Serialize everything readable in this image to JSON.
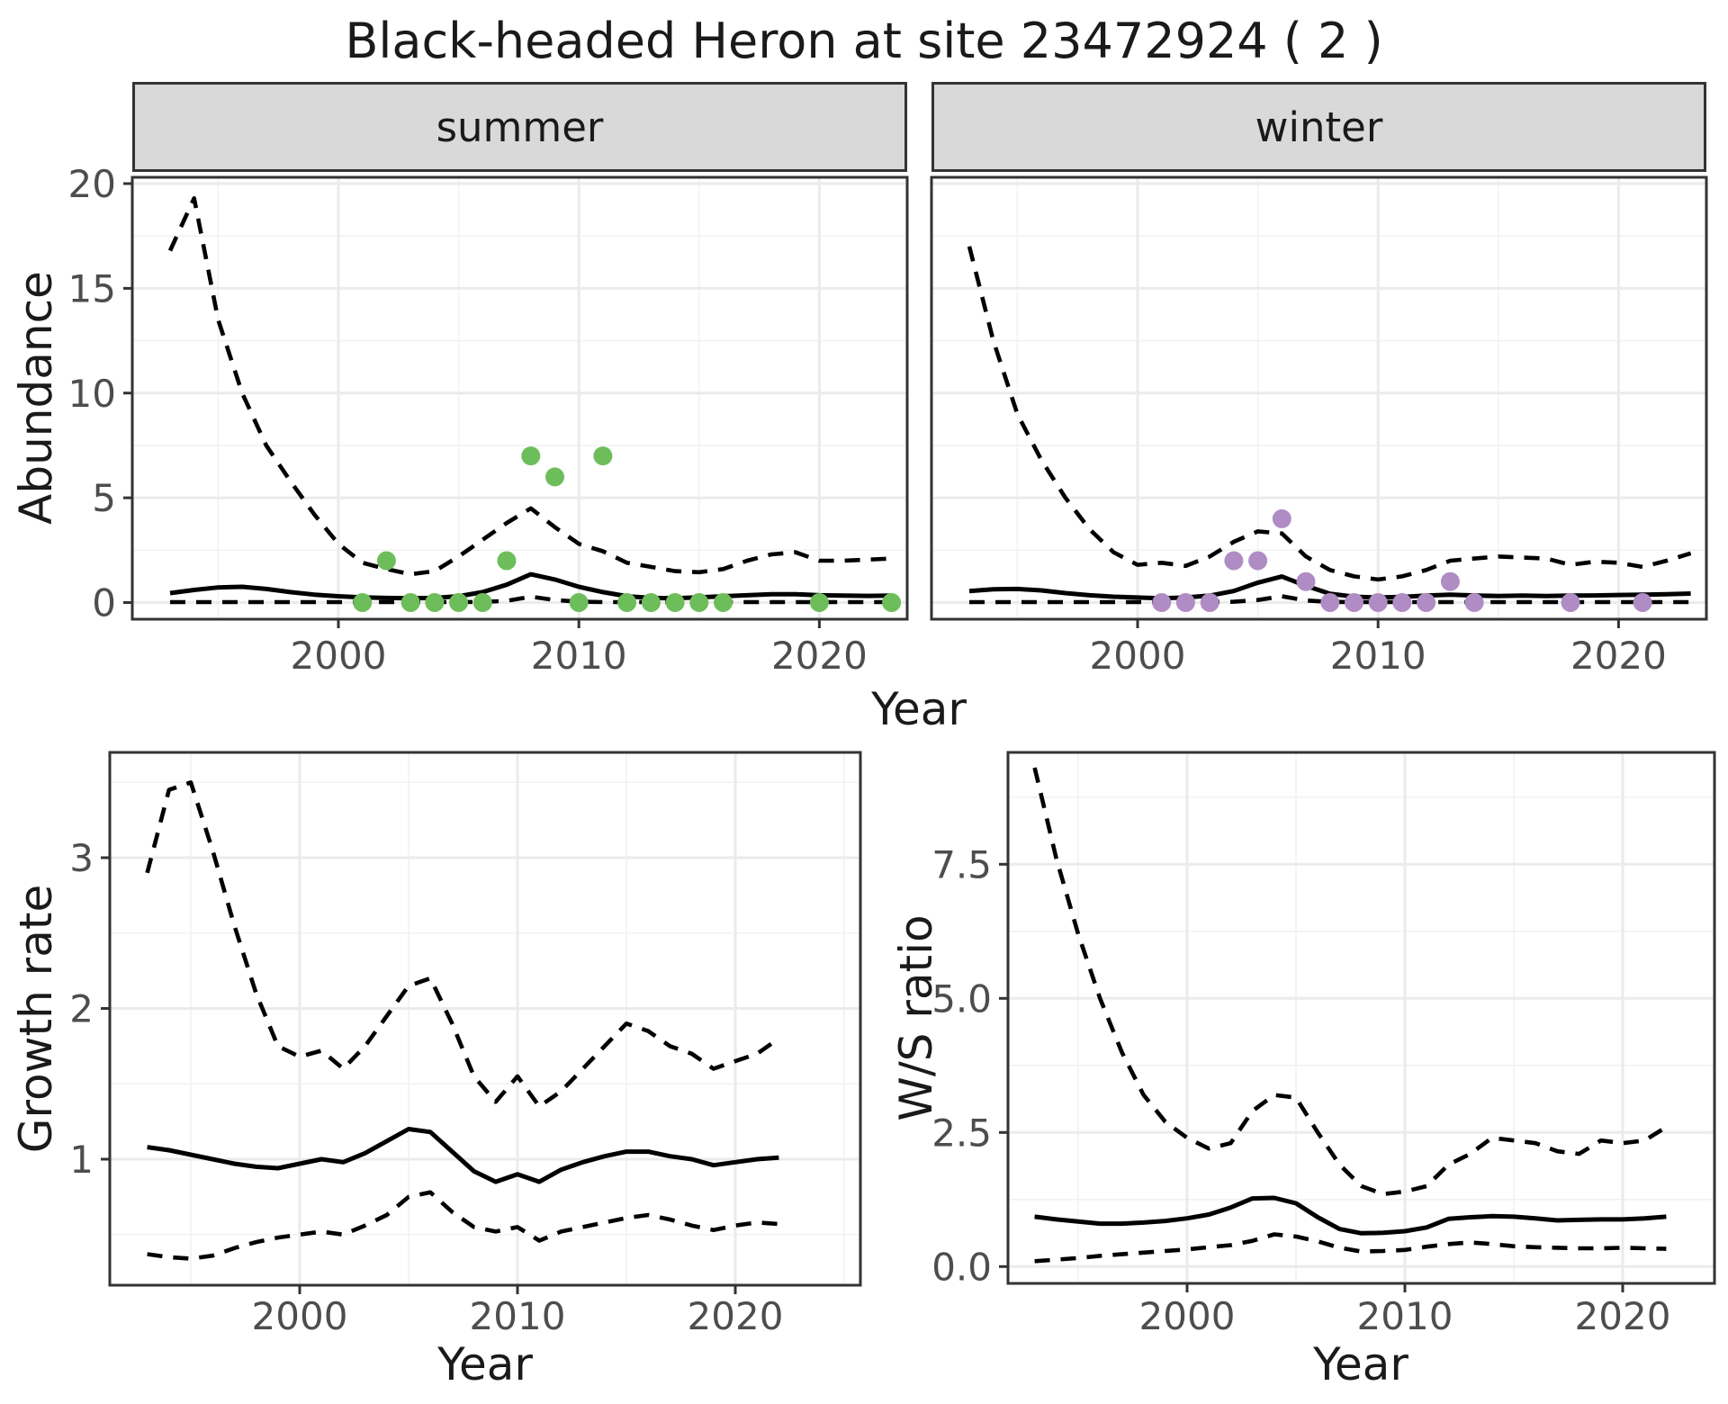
{
  "title": "Black-headed Heron at site 23472924 ( 2 )",
  "colors": {
    "summer_point": "#6dbe5b",
    "winter_point": "#b08cc5",
    "line": "#000000",
    "grid_major": "#ebebeb",
    "grid_minor": "#f2f2f2",
    "panel_border": "#333333",
    "strip_fill": "#d9d9d9",
    "tick_text": "#4d4d4d",
    "text": "#1a1a1a"
  },
  "chart_data": [
    {
      "type": "line",
      "title": "Abundance by year, faceted by season",
      "xlabel": "Year",
      "ylabel": "Abundance",
      "x_tick_labels": [
        "2000",
        "2010",
        "2020"
      ],
      "x_tick_values": [
        2000,
        2010,
        2020
      ],
      "y_tick_labels": [
        "0",
        "5",
        "10",
        "15",
        "20"
      ],
      "y_tick_values": [
        0,
        5,
        10,
        15,
        20
      ],
      "xlim": [
        1991.4,
        2023.6
      ],
      "ylim": [
        -0.8,
        20.3
      ],
      "grid": true,
      "legend": "none",
      "line_styles": {
        "median": "solid",
        "upper": "dashed",
        "lower": "dashed"
      },
      "facets": [
        {
          "name": "summer",
          "points": [
            [
              2001,
              0
            ],
            [
              2002,
              2
            ],
            [
              2003,
              0
            ],
            [
              2004,
              0
            ],
            [
              2005,
              0
            ],
            [
              2006,
              0
            ],
            [
              2007,
              2
            ],
            [
              2008,
              7
            ],
            [
              2009,
              6
            ],
            [
              2010,
              0
            ],
            [
              2011,
              7
            ],
            [
              2012,
              0
            ],
            [
              2013,
              0
            ],
            [
              2014,
              0
            ],
            [
              2015,
              0
            ],
            [
              2016,
              0
            ],
            [
              2020,
              0
            ],
            [
              2023,
              0
            ]
          ],
          "years": [
            1993,
            1994,
            1995,
            1996,
            1997,
            1998,
            1999,
            2000,
            2001,
            2002,
            2003,
            2004,
            2005,
            2006,
            2007,
            2008,
            2009,
            2010,
            2011,
            2012,
            2013,
            2014,
            2015,
            2016,
            2017,
            2018,
            2019,
            2020,
            2021,
            2022,
            2023
          ],
          "median": [
            0.45,
            0.6,
            0.72,
            0.75,
            0.65,
            0.5,
            0.38,
            0.3,
            0.25,
            0.22,
            0.2,
            0.22,
            0.3,
            0.5,
            0.85,
            1.35,
            1.1,
            0.75,
            0.5,
            0.3,
            0.22,
            0.2,
            0.25,
            0.3,
            0.35,
            0.4,
            0.4,
            0.35,
            0.33,
            0.32,
            0.33
          ],
          "upper": [
            16.8,
            19.3,
            13.5,
            10.0,
            7.5,
            5.8,
            4.2,
            2.8,
            1.9,
            1.6,
            1.35,
            1.5,
            2.2,
            3.0,
            3.8,
            4.5,
            3.6,
            2.8,
            2.45,
            1.9,
            1.7,
            1.5,
            1.45,
            1.6,
            2.0,
            2.3,
            2.4,
            2.0,
            2.0,
            2.05,
            2.1
          ],
          "lower": [
            0.02,
            0.02,
            0.02,
            0.02,
            0.02,
            0.02,
            0.02,
            0.02,
            0.02,
            0.02,
            0.02,
            0.02,
            0.02,
            0.03,
            0.08,
            0.28,
            0.12,
            0.04,
            0.02,
            0.02,
            0.02,
            0.02,
            0.02,
            0.02,
            0.02,
            0.02,
            0.02,
            0.02,
            0.02,
            0.02,
            0.02
          ]
        },
        {
          "name": "winter",
          "points": [
            [
              2001,
              0
            ],
            [
              2002,
              0
            ],
            [
              2003,
              0
            ],
            [
              2004,
              2
            ],
            [
              2005,
              2
            ],
            [
              2006,
              4
            ],
            [
              2007,
              1
            ],
            [
              2008,
              0
            ],
            [
              2009,
              0
            ],
            [
              2010,
              0
            ],
            [
              2011,
              0
            ],
            [
              2012,
              0
            ],
            [
              2013,
              1
            ],
            [
              2014,
              0
            ],
            [
              2018,
              0
            ],
            [
              2021,
              0
            ]
          ],
          "years": [
            1993,
            1994,
            1995,
            1996,
            1997,
            1998,
            1999,
            2000,
            2001,
            2002,
            2003,
            2004,
            2005,
            2006,
            2007,
            2008,
            2009,
            2010,
            2011,
            2012,
            2013,
            2014,
            2015,
            2016,
            2017,
            2018,
            2019,
            2020,
            2021,
            2022,
            2023
          ],
          "median": [
            0.55,
            0.63,
            0.65,
            0.58,
            0.45,
            0.35,
            0.28,
            0.24,
            0.2,
            0.24,
            0.33,
            0.55,
            0.95,
            1.24,
            0.8,
            0.42,
            0.28,
            0.24,
            0.27,
            0.33,
            0.38,
            0.34,
            0.31,
            0.33,
            0.31,
            0.33,
            0.34,
            0.36,
            0.38,
            0.4,
            0.43
          ],
          "upper": [
            17.0,
            12.5,
            9.0,
            6.8,
            5.0,
            3.5,
            2.4,
            1.8,
            1.9,
            1.75,
            2.2,
            2.9,
            3.4,
            3.3,
            2.2,
            1.55,
            1.25,
            1.1,
            1.25,
            1.55,
            2.0,
            2.1,
            2.2,
            2.15,
            2.1,
            1.8,
            1.95,
            1.9,
            1.7,
            2.0,
            2.35
          ],
          "lower": [
            0.02,
            0.02,
            0.02,
            0.02,
            0.02,
            0.02,
            0.02,
            0.02,
            0.02,
            0.02,
            0.02,
            0.04,
            0.12,
            0.3,
            0.1,
            0.03,
            0.02,
            0.02,
            0.02,
            0.02,
            0.02,
            0.02,
            0.02,
            0.02,
            0.02,
            0.02,
            0.02,
            0.02,
            0.02,
            0.02,
            0.02
          ]
        }
      ]
    },
    {
      "type": "line",
      "title": "Growth rate by year",
      "xlabel": "Year",
      "ylabel": "Growth rate",
      "x_tick_labels": [
        "2000",
        "2010",
        "2020"
      ],
      "x_tick_values": [
        2000,
        2010,
        2020
      ],
      "y_tick_labels": [
        "1",
        "2",
        "3"
      ],
      "y_tick_values": [
        1,
        2,
        3
      ],
      "xlim": [
        1991.3,
        2025.7
      ],
      "ylim": [
        0.16,
        3.7
      ],
      "grid": true,
      "legend": "none",
      "line_styles": {
        "median": "solid",
        "upper": "dashed",
        "lower": "dashed"
      },
      "years": [
        1993,
        1994,
        1995,
        1996,
        1997,
        1998,
        1999,
        2000,
        2001,
        2002,
        2003,
        2004,
        2005,
        2006,
        2007,
        2008,
        2009,
        2010,
        2011,
        2012,
        2013,
        2014,
        2015,
        2016,
        2017,
        2018,
        2019,
        2020,
        2021,
        2022
      ],
      "median": [
        1.08,
        1.06,
        1.03,
        1.0,
        0.97,
        0.95,
        0.94,
        0.97,
        1.0,
        0.98,
        1.04,
        1.12,
        1.2,
        1.18,
        1.05,
        0.92,
        0.85,
        0.9,
        0.85,
        0.93,
        0.98,
        1.02,
        1.05,
        1.05,
        1.02,
        1.0,
        0.96,
        0.98,
        1.0,
        1.01
      ],
      "upper": [
        2.9,
        3.45,
        3.5,
        3.05,
        2.55,
        2.1,
        1.75,
        1.68,
        1.72,
        1.6,
        1.75,
        1.95,
        2.15,
        2.2,
        1.9,
        1.55,
        1.38,
        1.55,
        1.35,
        1.45,
        1.6,
        1.75,
        1.9,
        1.85,
        1.75,
        1.7,
        1.6,
        1.65,
        1.7,
        1.8
      ],
      "lower": [
        0.37,
        0.35,
        0.34,
        0.36,
        0.41,
        0.45,
        0.48,
        0.5,
        0.52,
        0.5,
        0.56,
        0.63,
        0.75,
        0.78,
        0.65,
        0.55,
        0.52,
        0.55,
        0.46,
        0.52,
        0.55,
        0.58,
        0.61,
        0.63,
        0.6,
        0.56,
        0.53,
        0.56,
        0.58,
        0.57
      ]
    },
    {
      "type": "line",
      "title": "Winter/Summer ratio by year",
      "xlabel": "Year",
      "ylabel": "W/S ratio",
      "x_tick_labels": [
        "2000",
        "2010",
        "2020"
      ],
      "x_tick_values": [
        2000,
        2010,
        2020
      ],
      "y_tick_labels": [
        "0.0",
        "2.5",
        "5.0",
        "7.5"
      ],
      "y_tick_values": [
        0,
        2.5,
        5,
        7.5
      ],
      "xlim": [
        1991.8,
        2024.2
      ],
      "ylim": [
        -0.31,
        9.58
      ],
      "grid": true,
      "legend": "none",
      "line_styles": {
        "median": "solid",
        "upper": "dashed",
        "lower": "dashed"
      },
      "years": [
        1993,
        1994,
        1995,
        1996,
        1997,
        1998,
        1999,
        2000,
        2001,
        2002,
        2003,
        2004,
        2005,
        2006,
        2007,
        2008,
        2009,
        2010,
        2011,
        2012,
        2013,
        2014,
        2015,
        2016,
        2017,
        2018,
        2019,
        2020,
        2021,
        2022
      ],
      "median": [
        0.93,
        0.88,
        0.84,
        0.8,
        0.8,
        0.82,
        0.85,
        0.9,
        0.97,
        1.1,
        1.27,
        1.28,
        1.18,
        0.92,
        0.7,
        0.62,
        0.63,
        0.66,
        0.73,
        0.89,
        0.92,
        0.94,
        0.93,
        0.9,
        0.86,
        0.87,
        0.88,
        0.88,
        0.9,
        0.93
      ],
      "upper": [
        9.3,
        7.6,
        6.2,
        5.0,
        4.0,
        3.2,
        2.7,
        2.4,
        2.2,
        2.3,
        2.9,
        3.2,
        3.15,
        2.5,
        1.9,
        1.5,
        1.35,
        1.4,
        1.5,
        1.9,
        2.1,
        2.4,
        2.35,
        2.3,
        2.15,
        2.1,
        2.35,
        2.3,
        2.35,
        2.6
      ],
      "lower": [
        0.1,
        0.13,
        0.16,
        0.2,
        0.23,
        0.26,
        0.29,
        0.32,
        0.36,
        0.4,
        0.48,
        0.6,
        0.56,
        0.47,
        0.35,
        0.28,
        0.29,
        0.31,
        0.37,
        0.42,
        0.45,
        0.42,
        0.38,
        0.36,
        0.35,
        0.34,
        0.34,
        0.35,
        0.34,
        0.33
      ]
    }
  ],
  "labels": {
    "strip_summer": "summer",
    "strip_winter": "winter",
    "y_abundance": "Abundance",
    "y_growth": "Growth rate",
    "y_ws": "W/S ratio",
    "x_year_top": "Year",
    "x_year_growth": "Year",
    "x_year_ws": "Year"
  }
}
